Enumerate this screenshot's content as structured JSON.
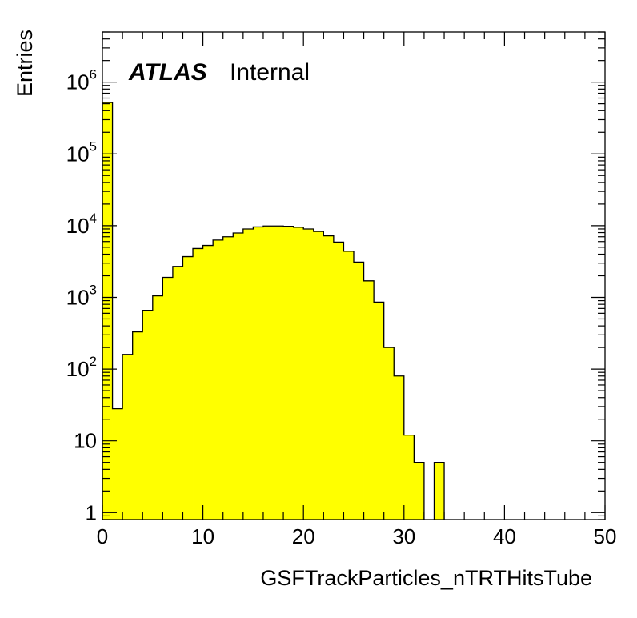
{
  "chart_data": {
    "type": "bar",
    "histogram": true,
    "fill_color": "#ffff00",
    "line_color": "#000000",
    "experiment_label": "ATLAS",
    "status_label": "Internal",
    "xlabel": "GSFTrackParticles_nTRTHitsTube",
    "ylabel": "Entries",
    "xlim": [
      0,
      50
    ],
    "ylim": [
      0.8,
      5000000
    ],
    "y_scale": "log",
    "x_ticks": [
      0,
      10,
      20,
      30,
      40,
      50
    ],
    "y_ticks": [
      {
        "value": 1,
        "base": "1",
        "exp": ""
      },
      {
        "value": 10,
        "base": "10",
        "exp": ""
      },
      {
        "value": 100,
        "base": "10",
        "exp": "2"
      },
      {
        "value": 1000,
        "base": "10",
        "exp": "3"
      },
      {
        "value": 10000,
        "base": "10",
        "exp": "4"
      },
      {
        "value": 100000,
        "base": "10",
        "exp": "5"
      },
      {
        "value": 1000000,
        "base": "10",
        "exp": "6"
      }
    ],
    "bin_edges_start": 0,
    "bin_width": 1,
    "values": [
      520000,
      28,
      160,
      330,
      660,
      1050,
      1900,
      2700,
      3700,
      4800,
      5300,
      6300,
      7000,
      7900,
      9000,
      9600,
      9900,
      9900,
      9800,
      9500,
      9000,
      8300,
      7200,
      5900,
      4400,
      3100,
      1700,
      860,
      200,
      80,
      12,
      5,
      0,
      5,
      0,
      0,
      0,
      0,
      0,
      0,
      0,
      0,
      0,
      0,
      0,
      0,
      0,
      0,
      0,
      0
    ]
  }
}
